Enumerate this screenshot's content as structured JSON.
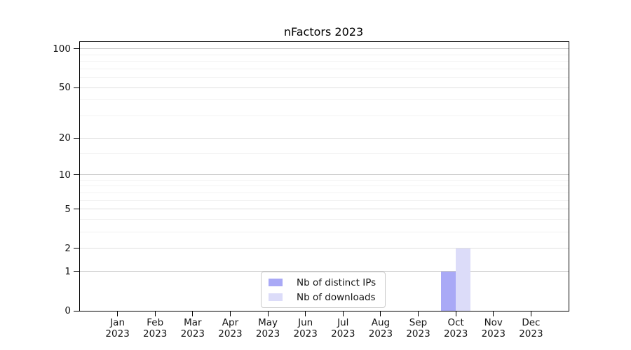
{
  "chart_data": {
    "type": "bar",
    "title": "nFactors 2023",
    "xlabel": "",
    "ylabel": "",
    "y_scale": "log1p",
    "ylim": [
      0,
      113
    ],
    "y_major_ticks": [
      0,
      1,
      2,
      5,
      10,
      20,
      50,
      100
    ],
    "y_decade_lines": [
      1,
      10,
      100
    ],
    "y_minor_lines": [
      3,
      4,
      6,
      7,
      8,
      9,
      15,
      30,
      40,
      60,
      70,
      80,
      90
    ],
    "categories": [
      "Jan",
      "Feb",
      "Mar",
      "Apr",
      "May",
      "Jun",
      "Jul",
      "Aug",
      "Sep",
      "Oct",
      "Nov",
      "Dec"
    ],
    "category_year": "2023",
    "series": [
      {
        "name": "Nb of distinct IPs",
        "color": "#a9a9f6",
        "values": [
          0,
          0,
          0,
          0,
          0,
          0,
          0,
          0,
          0,
          1,
          0,
          0
        ]
      },
      {
        "name": "Nb of downloads",
        "color": "#dcdcf9",
        "values": [
          0,
          0,
          0,
          0,
          0,
          0,
          0,
          0,
          0,
          2,
          0,
          0
        ]
      }
    ],
    "legend": {
      "position": "inside-bottom-center"
    },
    "grid": {
      "decade_color": "#c6c6c6",
      "major_color": "#dedede",
      "minor_color": "#f2f2f2",
      "axis_color": "#000000",
      "text_color": "#141414",
      "background": "#ffffff"
    }
  }
}
